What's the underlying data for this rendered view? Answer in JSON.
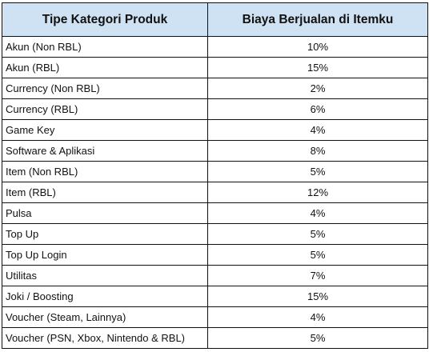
{
  "table": {
    "headers": {
      "category": "Tipe Kategori Produk",
      "fee": "Biaya Berjualan di Itemku"
    },
    "header_bg": "#cfe2f3",
    "rows": [
      {
        "category": "Akun (Non RBL)",
        "fee": "10%"
      },
      {
        "category": "Akun (RBL)",
        "fee": "15%"
      },
      {
        "category": "Currency (Non RBL)",
        "fee": "2%"
      },
      {
        "category": "Currency (RBL)",
        "fee": "6%"
      },
      {
        "category": "Game Key",
        "fee": "4%"
      },
      {
        "category": "Software & Aplikasi",
        "fee": "8%"
      },
      {
        "category": "Item (Non RBL)",
        "fee": "5%"
      },
      {
        "category": "Item (RBL)",
        "fee": "12%"
      },
      {
        "category": "Pulsa",
        "fee": "4%"
      },
      {
        "category": "Top Up",
        "fee": "5%"
      },
      {
        "category": "Top Up Login",
        "fee": "5%"
      },
      {
        "category": "Utilitas",
        "fee": "7%"
      },
      {
        "category": "Joki / Boosting",
        "fee": "15%"
      },
      {
        "category": "Voucher (Steam, Lainnya)",
        "fee": "4%"
      },
      {
        "category": "Voucher (PSN, Xbox, Nintendo & RBL)",
        "fee": "5%"
      }
    ]
  }
}
